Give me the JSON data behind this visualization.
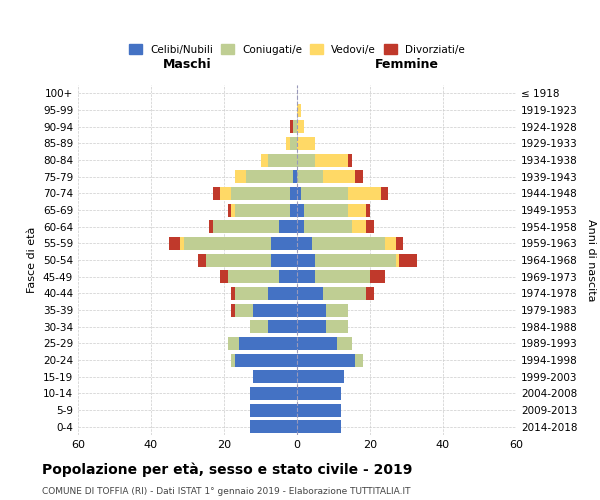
{
  "age_groups": [
    "0-4",
    "5-9",
    "10-14",
    "15-19",
    "20-24",
    "25-29",
    "30-34",
    "35-39",
    "40-44",
    "45-49",
    "50-54",
    "55-59",
    "60-64",
    "65-69",
    "70-74",
    "75-79",
    "80-84",
    "85-89",
    "90-94",
    "95-99",
    "100+"
  ],
  "birth_years": [
    "2014-2018",
    "2009-2013",
    "2004-2008",
    "1999-2003",
    "1994-1998",
    "1989-1993",
    "1984-1988",
    "1979-1983",
    "1974-1978",
    "1969-1973",
    "1964-1968",
    "1959-1963",
    "1954-1958",
    "1949-1953",
    "1944-1948",
    "1939-1943",
    "1934-1938",
    "1929-1933",
    "1924-1928",
    "1919-1923",
    "≤ 1918"
  ],
  "males": {
    "celibi": [
      13,
      13,
      13,
      12,
      17,
      16,
      8,
      12,
      8,
      5,
      7,
      7,
      5,
      2,
      2,
      1,
      0,
      0,
      0,
      0,
      0
    ],
    "coniugati": [
      0,
      0,
      0,
      0,
      1,
      3,
      5,
      5,
      9,
      14,
      18,
      24,
      18,
      15,
      16,
      13,
      8,
      2,
      1,
      0,
      0
    ],
    "vedovi": [
      0,
      0,
      0,
      0,
      0,
      0,
      0,
      0,
      0,
      0,
      0,
      1,
      0,
      1,
      3,
      3,
      2,
      1,
      0,
      0,
      0
    ],
    "divorziati": [
      0,
      0,
      0,
      0,
      0,
      0,
      0,
      1,
      1,
      2,
      2,
      3,
      1,
      1,
      2,
      0,
      0,
      0,
      1,
      0,
      0
    ]
  },
  "females": {
    "nubili": [
      12,
      12,
      12,
      13,
      16,
      11,
      8,
      8,
      7,
      5,
      5,
      4,
      2,
      2,
      1,
      0,
      0,
      0,
      0,
      0,
      0
    ],
    "coniugate": [
      0,
      0,
      0,
      0,
      2,
      4,
      6,
      6,
      12,
      15,
      22,
      20,
      13,
      12,
      13,
      7,
      5,
      0,
      0,
      0,
      0
    ],
    "vedove": [
      0,
      0,
      0,
      0,
      0,
      0,
      0,
      0,
      0,
      0,
      1,
      3,
      4,
      5,
      9,
      9,
      9,
      5,
      2,
      1,
      0
    ],
    "divorziate": [
      0,
      0,
      0,
      0,
      0,
      0,
      0,
      0,
      2,
      4,
      5,
      2,
      2,
      1,
      2,
      2,
      1,
      0,
      0,
      0,
      0
    ]
  },
  "colors": {
    "celibi": "#4472C4",
    "coniugati": "#BFCE93",
    "vedovi": "#FFD966",
    "divorziati": "#C0392B"
  },
  "legend_labels": [
    "Celibi/Nubili",
    "Coniugati/e",
    "Vedovi/e",
    "Divorziati/e"
  ],
  "title": "Popolazione per età, sesso e stato civile - 2019",
  "subtitle": "COMUNE DI TOFFIA (RI) - Dati ISTAT 1° gennaio 2019 - Elaborazione TUTTITALIA.IT",
  "xlabel_left": "Maschi",
  "xlabel_right": "Femmine",
  "ylabel_left": "Fasce di età",
  "ylabel_right": "Anni di nascita",
  "xlim": 60,
  "bg_color": "#ffffff",
  "grid_color": "#cccccc"
}
